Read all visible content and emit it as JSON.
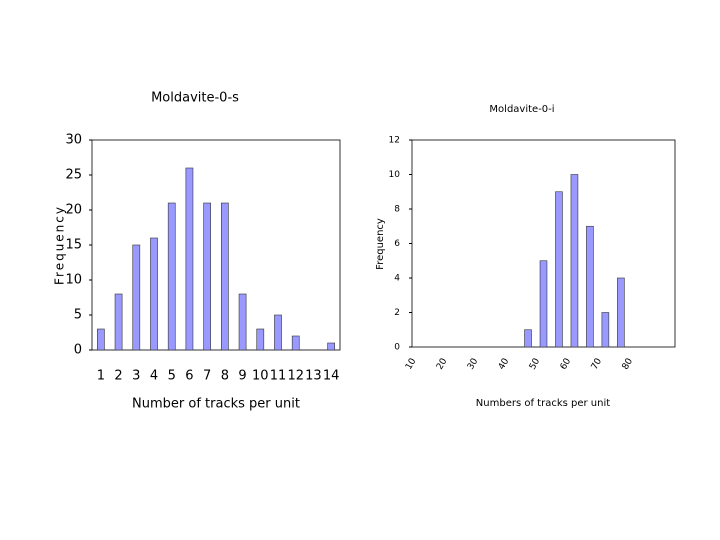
{
  "chart_data": [
    {
      "type": "bar",
      "title": "Moldavite-0-s",
      "x_label": "Number of tracks per unit",
      "y_label": "Frequency",
      "categories": [
        "1",
        "2",
        "3",
        "4",
        "5",
        "6",
        "7",
        "8",
        "9",
        "10",
        "11",
        "12",
        "13",
        "14"
      ],
      "values": [
        3,
        8,
        15,
        16,
        21,
        26,
        21,
        21,
        8,
        3,
        5,
        2,
        0,
        1
      ],
      "color": "#9999ff",
      "ylim": [
        0,
        30
      ],
      "yticks": [
        0,
        5,
        10,
        15,
        20,
        25,
        30
      ]
    },
    {
      "type": "bar",
      "title": "Moldavite-0-i",
      "x_label": "Numbers of tracks per unit",
      "y_label": "Frequency",
      "categories": [
        "10",
        null,
        "20",
        null,
        "30",
        null,
        "40",
        null,
        "50",
        null,
        "60",
        null,
        "70",
        null,
        "80",
        null,
        null
      ],
      "values": [
        0,
        0,
        0,
        0,
        0,
        0,
        0,
        1,
        5,
        9,
        10,
        7,
        2,
        4,
        0,
        0,
        0
      ],
      "color": "#9999ff",
      "ylim": [
        0,
        12
      ],
      "yticks": [
        0,
        2,
        4,
        6,
        8,
        10,
        12
      ]
    }
  ]
}
